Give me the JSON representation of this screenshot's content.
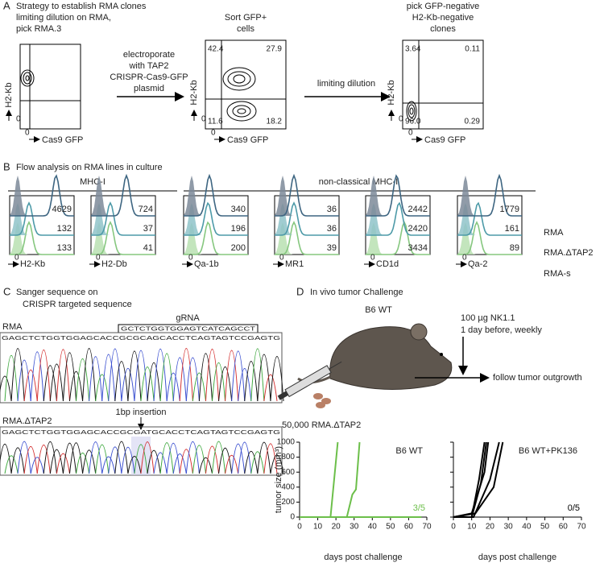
{
  "panel_a": {
    "label": "A",
    "title": [
      "Strategy to establish RMA clones",
      "limiting dilution on RMA,",
      "pick RMA.3"
    ],
    "step1": [
      "electroporate",
      "with TAP2",
      "CRISPR-Cas9-GFP",
      "plasmid"
    ],
    "plot2_title": [
      "Sort GFP+",
      "cells"
    ],
    "step2": "limiting dilution",
    "plot3_title": [
      "pick GFP-negative",
      "H2-Kb-negative",
      "clones"
    ],
    "y_axis": "H2-Kb",
    "x_axis": "Cas9 GFP",
    "zero": "0",
    "plot2_quadrants": [
      "42.4",
      "27.9",
      "11.6",
      "18.2"
    ],
    "plot3_quadrants": [
      "3.64",
      "0.11",
      "96.0",
      "0.29"
    ]
  },
  "panel_b": {
    "label": "B",
    "title": "Flow analysis on RMA lines in culture",
    "group1": "MHC-I",
    "group2": "non-classical MHC-I",
    "zero": "0",
    "lines": [
      "RMA",
      "RMA.ΔTAP2",
      "RMA-s"
    ],
    "markers": [
      {
        "name": "H2-Kb",
        "values": [
          4629,
          132,
          133
        ]
      },
      {
        "name": "H2-Db",
        "values": [
          724,
          37,
          41
        ]
      },
      {
        "name": "Qa-1b",
        "values": [
          340,
          196,
          200
        ]
      },
      {
        "name": "MR1",
        "values": [
          36,
          36,
          39
        ]
      },
      {
        "name": "CD1d",
        "values": [
          2442,
          2420,
          3434
        ]
      },
      {
        "name": "Qa-2",
        "values": [
          1779,
          161,
          89
        ]
      }
    ]
  },
  "panel_c": {
    "label": "C",
    "title": [
      "Sanger sequence on",
      "CRISPR targeted sequence"
    ],
    "grna": "gRNA",
    "grna_sequence": "GCTCTGGTGGAGTCATCAGCCT",
    "annotation": "1bp insertion",
    "rows": [
      {
        "name": "RMA",
        "sequence": "GAGCTCTGGTGGAGCACCGCGCAGCACCTCAGTAGTCCGAGTG"
      },
      {
        "name": "RMA.ΔTAP2",
        "sequence": "GAGCTCTGGTGGAGCACCGCGATGCACCTCAGTAGTCCGAGTG"
      }
    ]
  },
  "panel_d": {
    "label": "D",
    "title": "In vivo tumor Challenge",
    "strain": "B6 WT",
    "treatment": [
      "100 µg NK1.1",
      "1 day before, weekly"
    ],
    "outcome": "follow tumor outgrowth",
    "injection": "50,000 RMA.ΔTAP2"
  },
  "chart_data": [
    {
      "type": "line",
      "title": "B6 WT",
      "y_label": "tumor size (mm³)",
      "x_label": "days post challenge",
      "annotation": "3/5",
      "annotation_color": "#6cbf4a",
      "xlim": [
        0,
        70
      ],
      "xticks": [
        0,
        10,
        20,
        30,
        40,
        50,
        60,
        70
      ],
      "ylim": [
        0,
        1000
      ],
      "yticks": [
        0,
        200,
        400,
        600,
        800,
        1000
      ],
      "show_ytick_labels": true,
      "series": [
        {
          "color": "#6cbf4a",
          "x": [
            0,
            17,
            21
          ],
          "values": [
            0,
            0,
            1000
          ]
        },
        {
          "color": "#6cbf4a",
          "x": [
            0,
            26,
            29,
            31,
            33
          ],
          "values": [
            0,
            0,
            300,
            370,
            1000
          ]
        },
        {
          "color": "#6cbf4a",
          "x": [
            0,
            67
          ],
          "values": [
            0,
            0
          ]
        },
        {
          "color": "#6cbf4a",
          "x": [
            0,
            67
          ],
          "values": [
            0,
            0
          ]
        },
        {
          "color": "#6cbf4a",
          "x": [
            0,
            67
          ],
          "values": [
            0,
            0
          ]
        }
      ]
    },
    {
      "type": "line",
      "title": "B6 WT+PK136",
      "x_label": "days post challenge",
      "annotation": "0/5",
      "annotation_color": "#000000",
      "xlim": [
        0,
        70
      ],
      "xticks": [
        0,
        10,
        20,
        30,
        40,
        50,
        60,
        70
      ],
      "ylim": [
        0,
        1000
      ],
      "yticks": [
        0,
        200,
        400,
        600,
        800,
        1000
      ],
      "show_ytick_labels": false,
      "series": [
        {
          "color": "#000000",
          "x": [
            0,
            10,
            14,
            17
          ],
          "values": [
            0,
            0,
            500,
            1000
          ]
        },
        {
          "color": "#000000",
          "x": [
            0,
            10,
            15,
            18
          ],
          "values": [
            0,
            0,
            450,
            1000
          ]
        },
        {
          "color": "#000000",
          "x": [
            0,
            10,
            17,
            19
          ],
          "values": [
            0,
            50,
            600,
            1000
          ]
        },
        {
          "color": "#000000",
          "x": [
            0,
            11,
            20,
            25
          ],
          "values": [
            0,
            0,
            500,
            1000
          ]
        },
        {
          "color": "#000000",
          "x": [
            0,
            12,
            22,
            27
          ],
          "values": [
            0,
            50,
            400,
            1000
          ]
        }
      ]
    }
  ]
}
